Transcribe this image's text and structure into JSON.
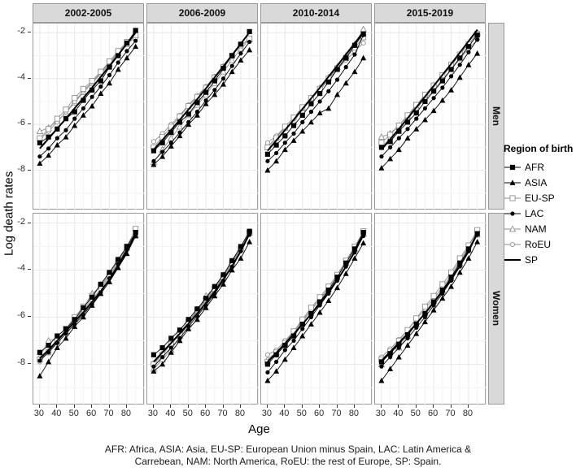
{
  "figure": {
    "y_axis_title": "Log death rates",
    "x_axis_title": "Age",
    "caption_line1": "AFR: Africa, ASIA: Asia,  EU-SP: European Union minus Spain, LAC: Latin America &",
    "caption_line2": "Carrebean, NAM: North America, RoEU: the rest of Europe,  SP: Spain.",
    "legend": {
      "title": "Region of birth",
      "items": [
        {
          "label": "AFR",
          "marker": "square",
          "variant": "filled",
          "color": "#000000"
        },
        {
          "label": "ASIA",
          "marker": "triangle",
          "variant": "filled",
          "color": "#000000"
        },
        {
          "label": "EU-SP",
          "marker": "square",
          "variant": "open",
          "color": "#8f8f8f"
        },
        {
          "label": "LAC",
          "marker": "circle",
          "variant": "filled",
          "color": "#000000"
        },
        {
          "label": "NAM",
          "marker": "triangle",
          "variant": "open",
          "color": "#8f8f8f"
        },
        {
          "label": "RoEU",
          "marker": "circle",
          "variant": "open",
          "color": "#8f8f8f"
        },
        {
          "label": "SP",
          "marker": "none",
          "variant": "line",
          "color": "#000000"
        }
      ]
    },
    "colors": {
      "strip_bg": "#d9d9d9",
      "panel_border": "#9a9a9a",
      "grid_major": "#e7e7e7",
      "grid_minor": "#f3f3f3",
      "gray_series": "#8f8f8f",
      "black_series": "#000000"
    }
  },
  "chart_data": {
    "type": "line",
    "title": "",
    "xlabel": "Age",
    "ylabel": "Log death rates",
    "col_facets": [
      "2002-2005",
      "2006-2009",
      "2010-2014",
      "2015-2019"
    ],
    "row_facets": [
      "Men",
      "Women"
    ],
    "x": [
      30,
      35,
      40,
      45,
      50,
      55,
      60,
      65,
      70,
      75,
      80,
      85
    ],
    "x_ticks": [
      30,
      40,
      50,
      60,
      70,
      80
    ],
    "y_ticks": [
      -2,
      -4,
      -6,
      -8
    ],
    "x_domain": [
      26.3,
      90.3
    ],
    "y_domain": [
      -9.75,
      -1.6
    ],
    "grid": true,
    "legend_position": "right",
    "series_styles": {
      "AFR": {
        "marker": "square",
        "variant": "filled",
        "color": "#000000",
        "width": 0.9
      },
      "ASIA": {
        "marker": "triangle",
        "variant": "filled",
        "color": "#000000",
        "width": 0.9
      },
      "EU-SP": {
        "marker": "square",
        "variant": "open",
        "color": "#8f8f8f",
        "width": 0.9
      },
      "LAC": {
        "marker": "circle",
        "variant": "filled",
        "color": "#000000",
        "width": 0.9
      },
      "NAM": {
        "marker": "triangle",
        "variant": "open",
        "color": "#8f8f8f",
        "width": 0.9
      },
      "RoEU": {
        "marker": "circle",
        "variant": "open",
        "color": "#8f8f8f",
        "width": 0.9
      },
      "SP": {
        "marker": "none",
        "variant": "line",
        "color": "#000000",
        "width": 2.0
      }
    },
    "draw_order": [
      "NAM",
      "RoEU",
      "EU-SP",
      "LAC",
      "ASIA",
      "AFR",
      "SP"
    ],
    "panels": [
      {
        "row": "Men",
        "col": "2002-2005",
        "series": {
          "AFR": [
            -6.8,
            -6.55,
            -6.2,
            -5.75,
            -5.45,
            -4.95,
            -4.5,
            -4.1,
            -3.5,
            -3.0,
            -2.45,
            -1.9
          ],
          "ASIA": [
            -7.7,
            -7.35,
            -6.9,
            -6.55,
            -6.05,
            -5.6,
            -5.2,
            -4.65,
            -4.2,
            -3.6,
            -3.1,
            -2.6
          ],
          "EU-SP": [
            -6.6,
            -6.2,
            -5.75,
            -5.35,
            -4.85,
            -4.45,
            -4.1,
            -3.7,
            -3.25,
            -2.8,
            -2.4,
            -2.1
          ],
          "LAC": [
            -7.4,
            -7.05,
            -6.6,
            -6.25,
            -5.75,
            -5.3,
            -4.8,
            -4.35,
            -3.85,
            -3.3,
            -2.8,
            -2.35
          ],
          "NAM": [
            -6.3,
            -6.15,
            -5.85,
            -5.5,
            -5.05,
            -4.6,
            -4.2,
            -3.8,
            -3.35,
            -2.9,
            -2.5,
            -2.1
          ],
          "RoEU": [
            -6.65,
            -6.3,
            -5.9,
            -5.45,
            -5.0,
            -4.55,
            -4.15,
            -3.75,
            -3.3,
            -2.85,
            -2.45,
            -2.25
          ],
          "SP": [
            -7.05,
            -6.62,
            -6.18,
            -5.75,
            -5.3,
            -4.85,
            -4.4,
            -3.93,
            -3.45,
            -2.97,
            -2.48,
            -2.0
          ]
        }
      },
      {
        "row": "Men",
        "col": "2006-2009",
        "series": {
          "AFR": [
            -7.15,
            -6.8,
            -6.35,
            -5.9,
            -5.55,
            -5.05,
            -4.6,
            -4.1,
            -3.55,
            -3.0,
            -2.5,
            -1.95
          ],
          "ASIA": [
            -7.75,
            -7.4,
            -6.95,
            -6.5,
            -6.0,
            -5.6,
            -5.1,
            -4.7,
            -4.25,
            -3.7,
            -3.2,
            -2.75
          ],
          "EU-SP": [
            -7.0,
            -6.55,
            -6.1,
            -5.65,
            -5.2,
            -4.8,
            -4.4,
            -3.95,
            -3.5,
            -3.0,
            -2.55,
            -2.25
          ],
          "LAC": [
            -7.6,
            -7.2,
            -6.8,
            -6.35,
            -5.9,
            -5.45,
            -4.95,
            -4.5,
            -4.0,
            -3.45,
            -2.9,
            -2.4
          ],
          "NAM": [
            -7.65,
            -7.1,
            -6.6,
            -6.1,
            -5.6,
            -5.15,
            -4.7,
            -4.2,
            -3.7,
            -3.2,
            -2.7,
            -2.3
          ],
          "RoEU": [
            -6.75,
            -6.4,
            -6.0,
            -5.6,
            -5.15,
            -4.75,
            -4.35,
            -3.9,
            -3.45,
            -3.0,
            -2.55,
            -2.3
          ],
          "SP": [
            -7.1,
            -6.68,
            -6.25,
            -5.8,
            -5.35,
            -4.9,
            -4.43,
            -3.95,
            -3.47,
            -2.98,
            -2.48,
            -1.98
          ]
        }
      },
      {
        "row": "Men",
        "col": "2010-2014",
        "series": {
          "AFR": [
            -7.3,
            -6.9,
            -6.5,
            -6.05,
            -5.6,
            -5.1,
            -4.65,
            -4.15,
            -3.6,
            -3.1,
            -2.55,
            -2.05
          ],
          "ASIA": [
            -8.0,
            -7.6,
            -7.1,
            -6.7,
            -6.3,
            -5.9,
            -5.5,
            -5.3,
            -4.7,
            -4.2,
            -3.7,
            -3.1
          ],
          "EU-SP": [
            -7.0,
            -6.6,
            -6.1,
            -5.7,
            -5.25,
            -4.85,
            -4.45,
            -4.0,
            -3.55,
            -3.1,
            -2.65,
            -2.2
          ],
          "LAC": [
            -7.6,
            -7.25,
            -6.8,
            -6.4,
            -5.9,
            -5.45,
            -5.0,
            -4.55,
            -4.05,
            -3.5,
            -2.95,
            -2.1
          ],
          "NAM": [
            -7.0,
            -6.55,
            -6.15,
            -5.9,
            -5.3,
            -4.85,
            -4.4,
            -3.95,
            -3.5,
            -3.0,
            -2.5,
            -1.85
          ],
          "RoEU": [
            -6.8,
            -6.5,
            -6.1,
            -5.7,
            -5.3,
            -4.9,
            -4.5,
            -4.05,
            -3.6,
            -3.2,
            -2.8,
            -2.45
          ],
          "SP": [
            -7.15,
            -6.7,
            -6.25,
            -5.8,
            -5.33,
            -4.87,
            -4.4,
            -3.92,
            -3.44,
            -2.95,
            -2.46,
            -1.97
          ]
        }
      },
      {
        "row": "Men",
        "col": "2015-2019",
        "series": {
          "AFR": [
            -7.0,
            -6.75,
            -6.3,
            -5.9,
            -5.5,
            -5.0,
            -4.55,
            -4.1,
            -3.6,
            -3.1,
            -2.6,
            -2.1
          ],
          "ASIA": [
            -7.9,
            -7.5,
            -7.1,
            -6.6,
            -6.2,
            -5.8,
            -5.4,
            -4.95,
            -4.5,
            -3.95,
            -3.4,
            -2.9
          ],
          "EU-SP": [
            -6.8,
            -6.45,
            -6.05,
            -5.6,
            -5.15,
            -4.7,
            -4.3,
            -3.85,
            -3.4,
            -2.95,
            -2.5,
            -2.05
          ],
          "LAC": [
            -7.4,
            -7.0,
            -6.6,
            -6.2,
            -5.75,
            -5.3,
            -4.85,
            -4.4,
            -3.9,
            -3.4,
            -2.85,
            -2.3
          ],
          "NAM": [
            -6.55,
            -6.4,
            -6.05,
            -5.65,
            -5.2,
            -4.75,
            -4.3,
            -3.9,
            -3.45,
            -2.95,
            -2.5,
            -2.0
          ],
          "RoEU": [
            -7.0,
            -6.6,
            -6.2,
            -5.75,
            -5.3,
            -4.9,
            -4.5,
            -4.05,
            -3.6,
            -3.15,
            -2.7,
            -2.3
          ],
          "SP": [
            -7.1,
            -6.65,
            -6.2,
            -5.73,
            -5.26,
            -4.79,
            -4.32,
            -3.84,
            -3.36,
            -2.87,
            -2.37,
            -1.87
          ]
        }
      },
      {
        "row": "Women",
        "col": "2002-2005",
        "series": {
          "AFR": [
            -7.5,
            -7.2,
            -6.8,
            -6.5,
            -6.1,
            -5.6,
            -5.15,
            -4.6,
            -4.1,
            -3.55,
            -3.0,
            -2.4
          ],
          "ASIA": [
            -8.5,
            -7.9,
            -7.3,
            -6.9,
            -6.4,
            -6.0,
            -5.5,
            -5.0,
            -4.5,
            -3.9,
            -3.3,
            -2.55
          ],
          "EU-SP": [
            -7.8,
            -7.5,
            -7.0,
            -6.5,
            -6.0,
            -5.55,
            -5.1,
            -4.65,
            -4.2,
            -3.6,
            -3.0,
            -2.25
          ],
          "LAC": [
            -7.85,
            -7.5,
            -7.1,
            -6.7,
            -6.3,
            -5.9,
            -5.45,
            -4.95,
            -4.35,
            -3.75,
            -3.1,
            -2.5
          ],
          "NAM": [
            -7.7,
            -7.0,
            -6.9,
            -6.6,
            -6.1,
            -5.6,
            -5.0,
            -4.7,
            -4.2,
            -3.6,
            -3.05,
            -2.5
          ],
          "RoEU": [
            -7.9,
            -7.45,
            -7.05,
            -6.6,
            -6.15,
            -5.7,
            -5.25,
            -4.8,
            -4.25,
            -3.7,
            -3.1,
            -2.4
          ],
          "SP": [
            -7.75,
            -7.4,
            -7.0,
            -6.6,
            -6.2,
            -5.8,
            -5.35,
            -4.9,
            -4.4,
            -3.85,
            -3.2,
            -2.45
          ]
        }
      },
      {
        "row": "Women",
        "col": "2006-2009",
        "series": {
          "AFR": [
            -7.6,
            -7.3,
            -6.9,
            -6.55,
            -6.1,
            -5.65,
            -5.2,
            -4.7,
            -4.2,
            -3.6,
            -3.0,
            -2.35
          ],
          "ASIA": [
            -8.3,
            -8.0,
            -7.5,
            -7.0,
            -6.5,
            -6.1,
            -5.6,
            -5.1,
            -4.6,
            -4.0,
            -3.5,
            -2.8
          ],
          "EU-SP": [
            -8.0,
            -7.6,
            -7.15,
            -6.7,
            -6.2,
            -5.7,
            -5.25,
            -4.8,
            -4.3,
            -3.7,
            -3.1,
            -2.4
          ],
          "LAC": [
            -8.1,
            -7.7,
            -7.3,
            -6.9,
            -6.4,
            -5.95,
            -5.5,
            -5.0,
            -4.45,
            -3.85,
            -3.2,
            -2.5
          ],
          "NAM": [
            -8.2,
            -7.8,
            -7.4,
            -6.8,
            -6.3,
            -5.75,
            -5.1,
            -4.75,
            -4.25,
            -3.65,
            -3.05,
            -2.4
          ],
          "RoEU": [
            -7.95,
            -7.55,
            -7.1,
            -6.65,
            -6.2,
            -5.75,
            -5.3,
            -4.85,
            -4.3,
            -3.7,
            -3.1,
            -2.45
          ],
          "SP": [
            -7.9,
            -7.5,
            -7.1,
            -6.7,
            -6.28,
            -5.85,
            -5.4,
            -4.92,
            -4.4,
            -3.84,
            -3.2,
            -2.45
          ]
        }
      },
      {
        "row": "Women",
        "col": "2010-2014",
        "series": {
          "AFR": [
            -8.0,
            -7.6,
            -7.2,
            -6.8,
            -6.3,
            -5.85,
            -5.35,
            -4.85,
            -4.3,
            -3.7,
            -3.1,
            -2.4
          ],
          "ASIA": [
            -8.7,
            -8.3,
            -7.8,
            -7.3,
            -6.8,
            -6.3,
            -5.8,
            -5.3,
            -4.75,
            -4.15,
            -3.5,
            -2.85
          ],
          "EU-SP": [
            -7.9,
            -7.5,
            -7.1,
            -6.6,
            -6.1,
            -5.6,
            -5.15,
            -4.7,
            -4.2,
            -3.6,
            -3.0,
            -2.35
          ],
          "LAC": [
            -8.35,
            -7.9,
            -7.4,
            -7.0,
            -6.5,
            -6.0,
            -5.5,
            -5.0,
            -4.45,
            -3.85,
            -3.25,
            -2.55
          ],
          "NAM": [
            -7.8,
            -7.5,
            -7.1,
            -6.7,
            -6.2,
            -5.7,
            -5.2,
            -4.8,
            -4.3,
            -3.7,
            -3.1,
            -2.45
          ],
          "RoEU": [
            -7.6,
            -7.4,
            -7.0,
            -6.6,
            -6.15,
            -5.7,
            -5.25,
            -4.8,
            -4.25,
            -3.65,
            -3.05,
            -2.4
          ],
          "SP": [
            -7.9,
            -7.52,
            -7.12,
            -6.72,
            -6.3,
            -5.87,
            -5.42,
            -4.94,
            -4.42,
            -3.86,
            -3.22,
            -2.45
          ]
        }
      },
      {
        "row": "Women",
        "col": "2015-2019",
        "series": {
          "AFR": [
            -7.9,
            -7.55,
            -7.15,
            -6.75,
            -6.3,
            -5.85,
            -5.35,
            -4.85,
            -4.3,
            -3.7,
            -3.1,
            -2.45
          ],
          "ASIA": [
            -8.7,
            -8.2,
            -7.7,
            -7.2,
            -6.7,
            -6.2,
            -5.7,
            -5.2,
            -4.7,
            -4.1,
            -3.5,
            -2.8
          ],
          "EU-SP": [
            -7.8,
            -7.45,
            -7.0,
            -6.55,
            -6.05,
            -5.55,
            -5.1,
            -4.6,
            -4.1,
            -3.5,
            -2.95,
            -2.3
          ],
          "LAC": [
            -8.1,
            -7.7,
            -7.3,
            -6.9,
            -6.45,
            -6.0,
            -5.5,
            -5.0,
            -4.45,
            -3.85,
            -3.2,
            -2.5
          ],
          "NAM": [
            -8.0,
            -7.4,
            -7.3,
            -6.8,
            -6.3,
            -5.8,
            -5.3,
            -4.85,
            -4.35,
            -3.75,
            -3.15,
            -2.5
          ],
          "RoEU": [
            -7.7,
            -7.35,
            -6.95,
            -6.55,
            -6.1,
            -5.65,
            -5.2,
            -4.75,
            -4.2,
            -3.6,
            -3.0,
            -2.35
          ],
          "SP": [
            -7.85,
            -7.48,
            -7.1,
            -6.7,
            -6.28,
            -5.84,
            -5.38,
            -4.9,
            -4.38,
            -3.82,
            -3.2,
            -2.42
          ]
        }
      }
    ]
  }
}
